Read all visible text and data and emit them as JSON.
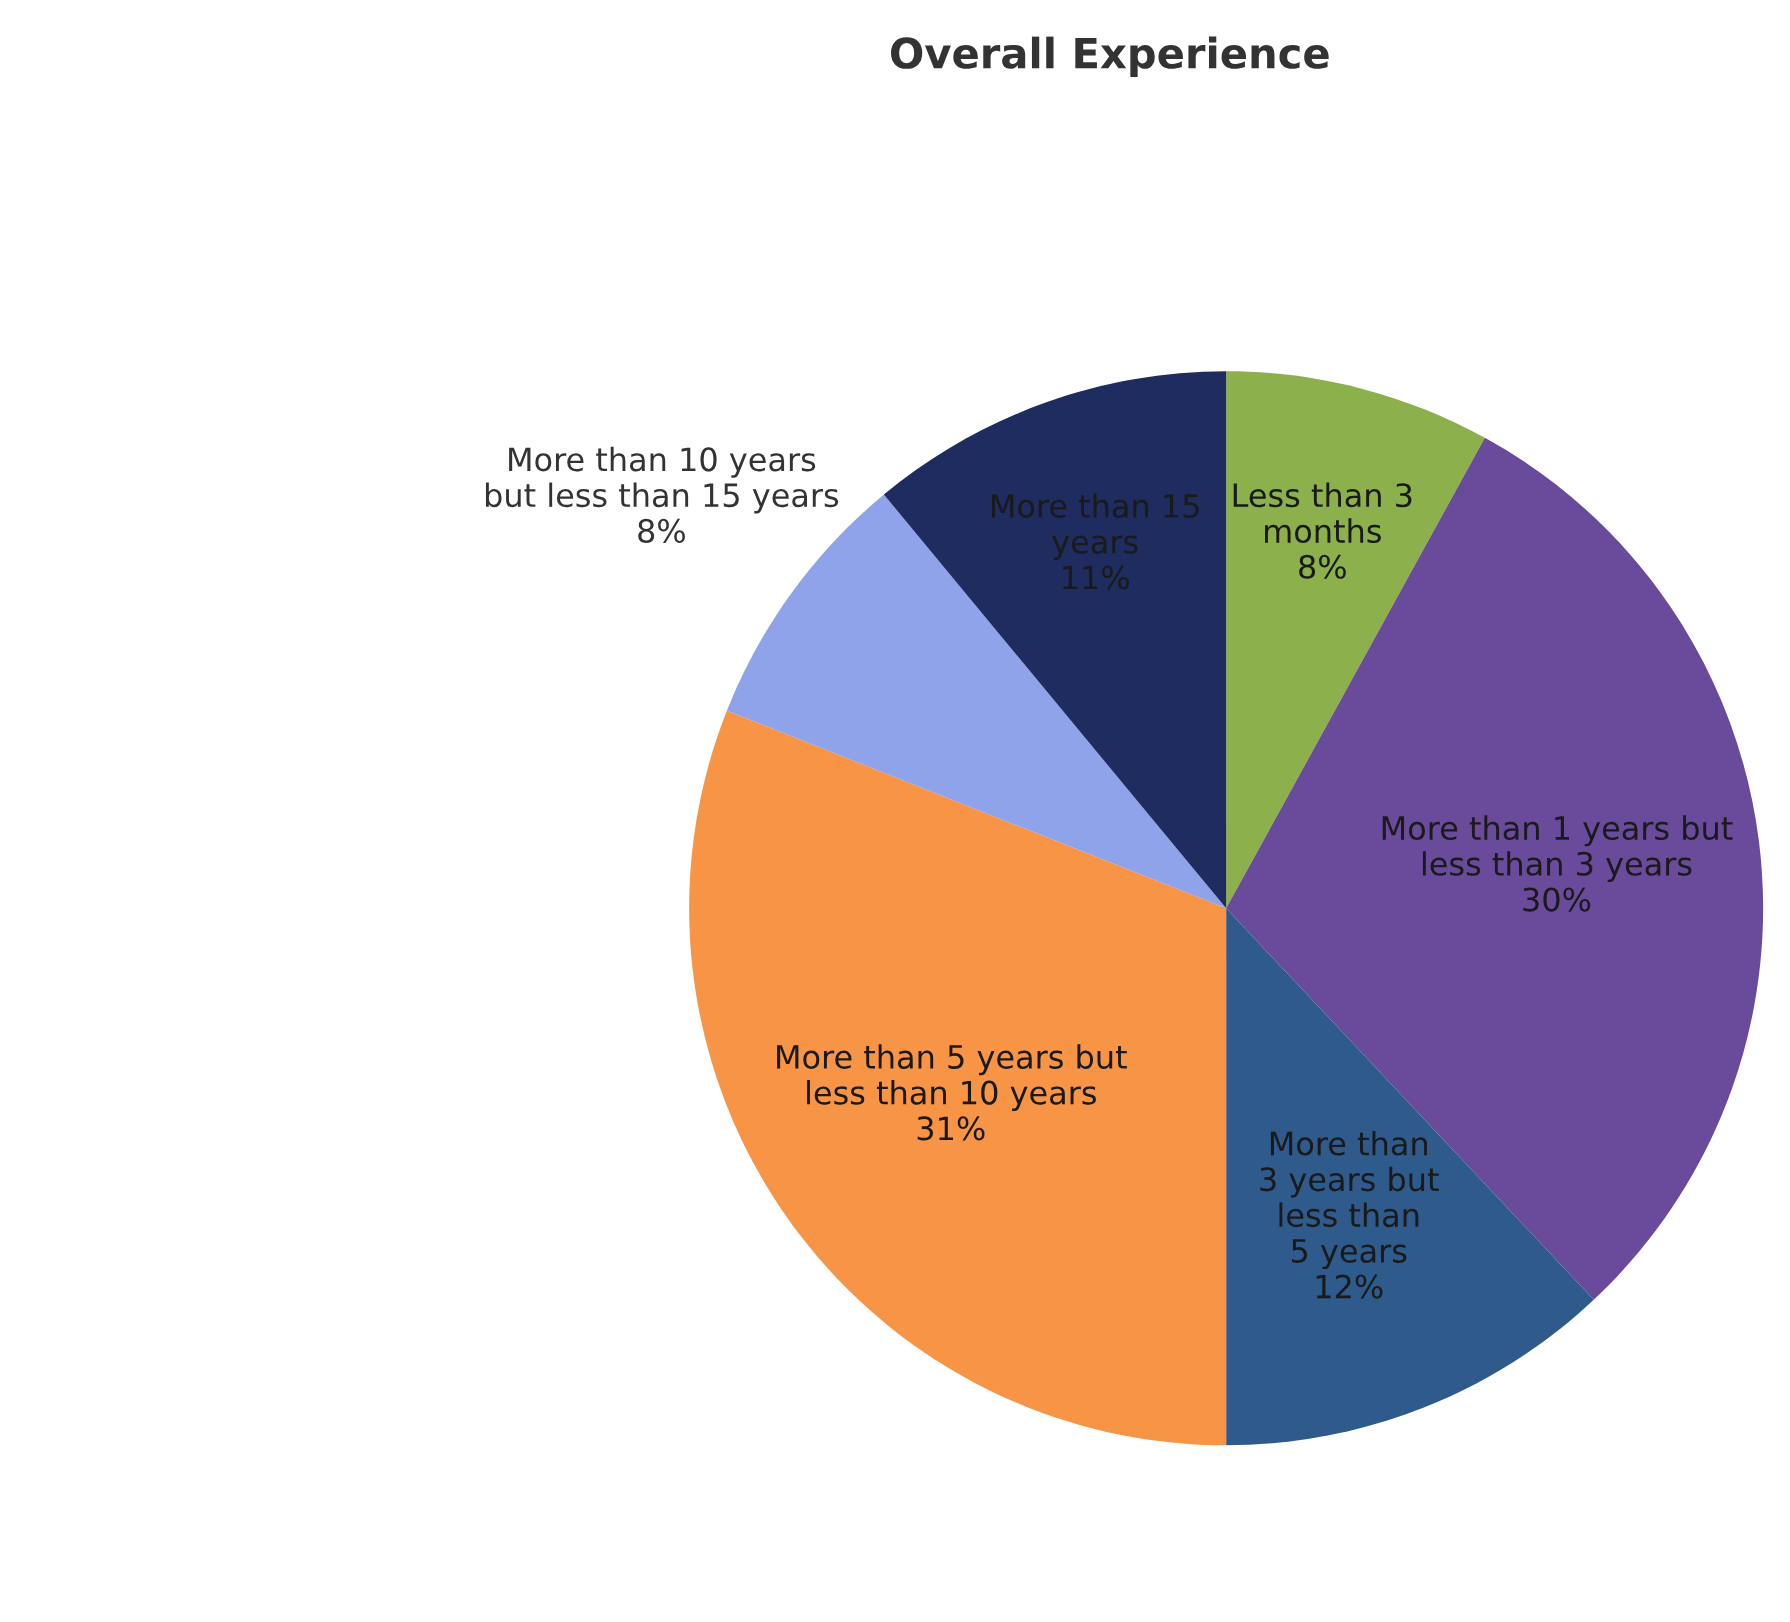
{
  "chart_data": {
    "type": "pie",
    "title": "Overall Experience",
    "categories": [
      "Less than 3\nmonths",
      "More than 1 years but\nless than 3 years",
      "More than\n3 years but\nless than\n5 years",
      "More than 5 years but\nless than 10 years",
      "More than 10 years\nbut less than 15 years",
      "More than 15\nyears"
    ],
    "values": [
      8,
      30,
      12,
      31,
      8,
      11
    ],
    "value_labels": [
      "8%",
      "30%",
      "12%",
      "31%",
      "8%",
      "11%"
    ],
    "colors": [
      "#8cb04b",
      "#6a4b9b",
      "#2e5b8c",
      "#f79445",
      "#8ea3ea",
      "#1f2c5f"
    ]
  }
}
